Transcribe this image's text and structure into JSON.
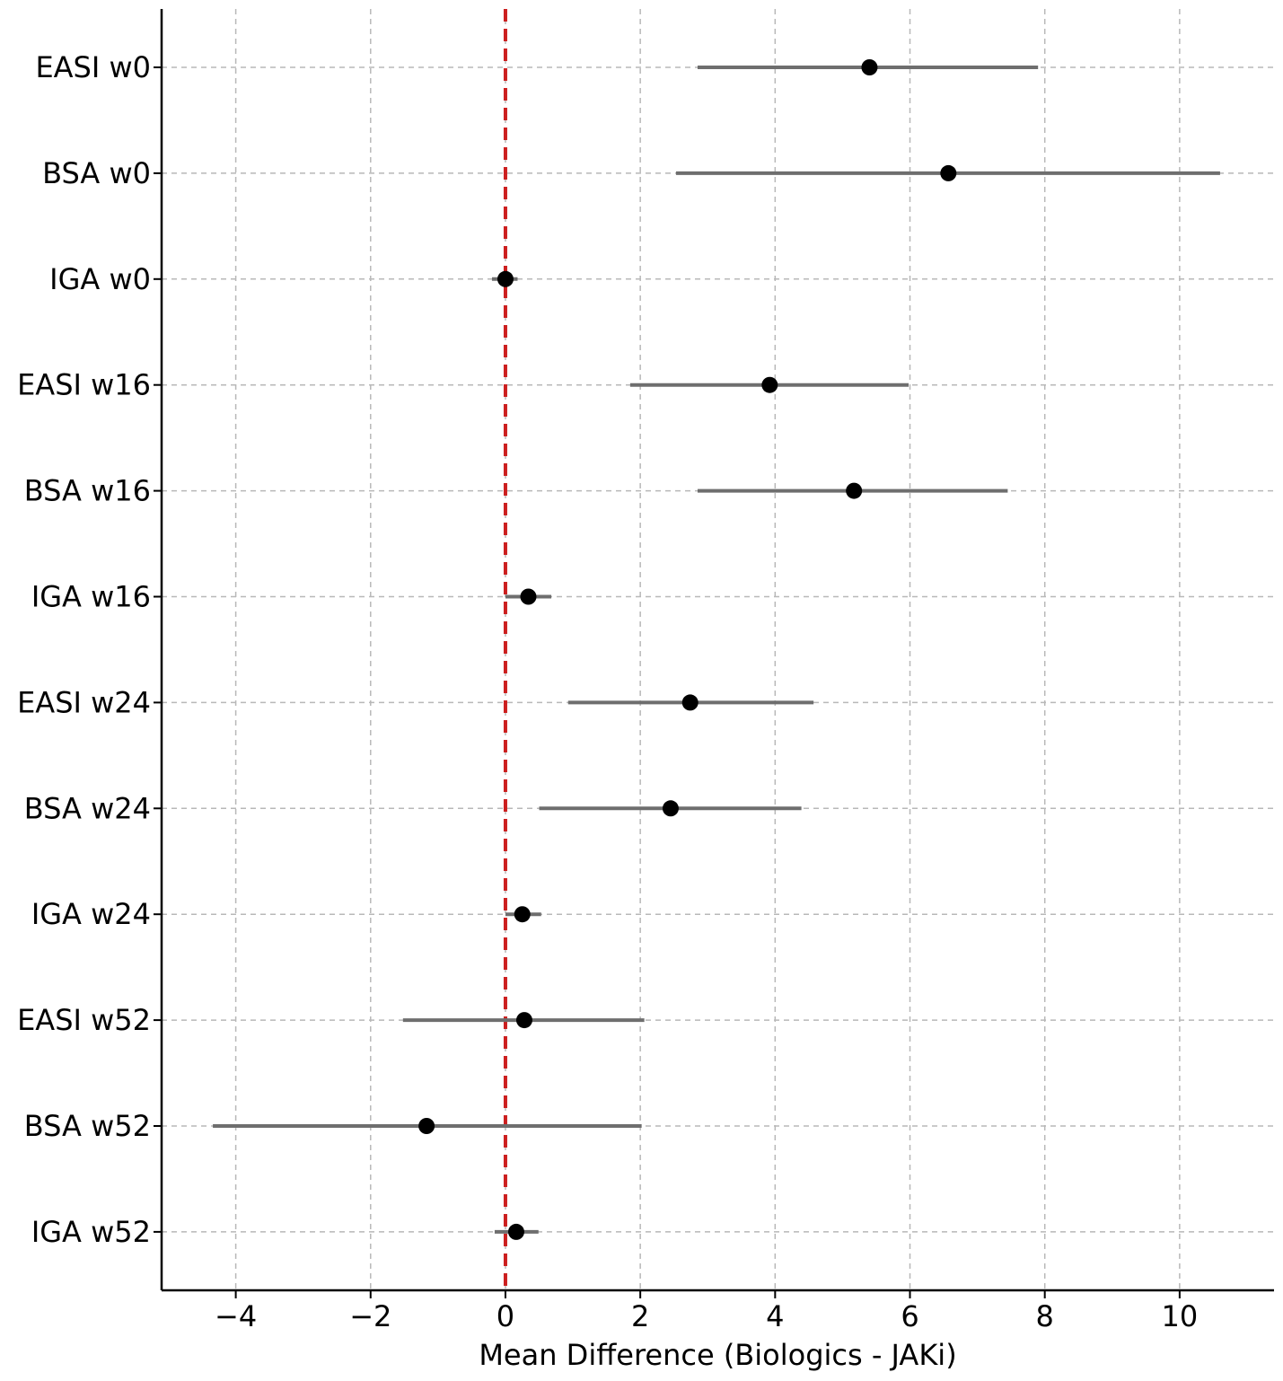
{
  "chart_data": {
    "type": "forest",
    "xlabel": "Mean Difference (Biologics - JAKi)",
    "xlim": [
      -5.1,
      11.4
    ],
    "xticks": [
      -4,
      -2,
      0,
      2,
      4,
      6,
      8,
      10
    ],
    "xtick_labels": [
      "−4",
      "−2",
      "0",
      "2",
      "4",
      "6",
      "8",
      "10"
    ],
    "reference_line": {
      "x": 0,
      "color": "#cc1f1f",
      "style": "dashed"
    },
    "grid": true,
    "point_color": "#000000",
    "ci_color": "#6e6e6e",
    "rows": [
      {
        "label": "EASI w0",
        "mean": 5.4,
        "lower": 2.85,
        "upper": 7.9
      },
      {
        "label": "BSA w0",
        "mean": 6.57,
        "lower": 2.53,
        "upper": 10.6
      },
      {
        "label": "IGA w0",
        "mean": 0.0,
        "lower": -0.2,
        "upper": 0.18
      },
      {
        "label": "EASI w16",
        "mean": 3.92,
        "lower": 1.85,
        "upper": 5.98
      },
      {
        "label": "BSA w16",
        "mean": 5.17,
        "lower": 2.85,
        "upper": 7.45
      },
      {
        "label": "IGA w16",
        "mean": 0.34,
        "lower": 0.0,
        "upper": 0.68
      },
      {
        "label": "EASI w24",
        "mean": 2.74,
        "lower": 0.93,
        "upper": 4.57
      },
      {
        "label": "BSA w24",
        "mean": 2.45,
        "lower": 0.5,
        "upper": 4.39
      },
      {
        "label": "IGA w24",
        "mean": 0.25,
        "lower": 0.0,
        "upper": 0.53
      },
      {
        "label": "EASI w52",
        "mean": 0.28,
        "lower": -1.52,
        "upper": 2.06
      },
      {
        "label": "BSA w52",
        "mean": -1.17,
        "lower": -4.34,
        "upper": 2.02
      },
      {
        "label": "IGA w52",
        "mean": 0.16,
        "lower": -0.16,
        "upper": 0.49
      }
    ]
  }
}
